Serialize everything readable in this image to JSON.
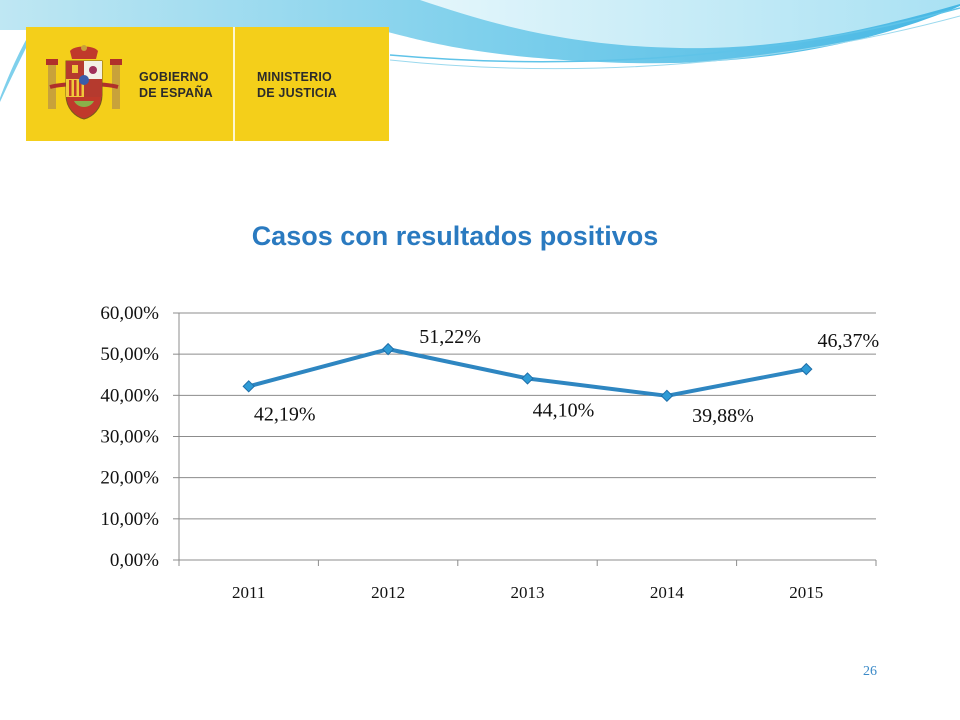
{
  "logo": {
    "left_lines": [
      "GOBIERNO",
      "DE ESPAÑA"
    ],
    "right_lines": [
      "MINISTERIO",
      "DE JUSTICIA"
    ],
    "background": "#f4cf1a"
  },
  "slide_number": "26",
  "colors": {
    "title": "#2a7ac0",
    "line": "#2e86c1",
    "marker": "#2e9bd6",
    "grid": "#8c8c8c"
  },
  "chart_data": {
    "type": "line",
    "title": "Casos con resultados positivos",
    "categories": [
      "2011",
      "2012",
      "2013",
      "2014",
      "2015"
    ],
    "series": [
      {
        "values": [
          42.19,
          51.22,
          44.1,
          39.88,
          46.37
        ],
        "labels": [
          "42,19%",
          "51,22%",
          "44,10%",
          "39,88%",
          "46,37%"
        ]
      }
    ],
    "ylim": [
      0,
      60
    ],
    "yticks": [
      0,
      10,
      20,
      30,
      40,
      50,
      60
    ],
    "ytick_labels": [
      "0,00%",
      "10,00%",
      "20,00%",
      "30,00%",
      "40,00%",
      "50,00%",
      "60,00%"
    ],
    "grid": true,
    "legend": "none",
    "xlabel": "",
    "ylabel": ""
  }
}
